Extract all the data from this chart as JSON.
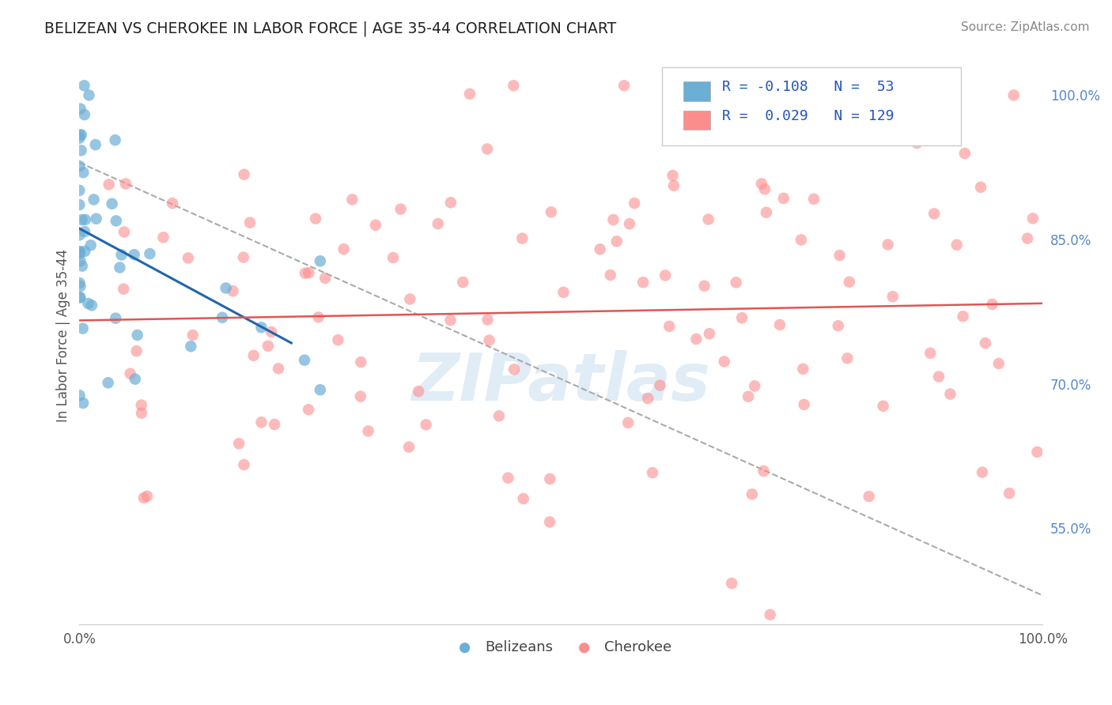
{
  "title": "BELIZEAN VS CHEROKEE IN LABOR FORCE | AGE 35-44 CORRELATION CHART",
  "source": "Source: ZipAtlas.com",
  "ylabel": "In Labor Force | Age 35-44",
  "xlim": [
    0.0,
    1.0
  ],
  "ylim": [
    0.45,
    1.05
  ],
  "belizean_R": -0.108,
  "belizean_N": 53,
  "cherokee_R": 0.029,
  "cherokee_N": 129,
  "belizean_color": "#6baed6",
  "cherokee_color": "#fc8d8d",
  "belizean_line_color": "#2166ac",
  "cherokee_line_color": "#e05555",
  "dashed_line_color": "#aaaaaa",
  "background_color": "#ffffff",
  "grid_color": "#dddddd",
  "watermark": "ZIPatlas"
}
